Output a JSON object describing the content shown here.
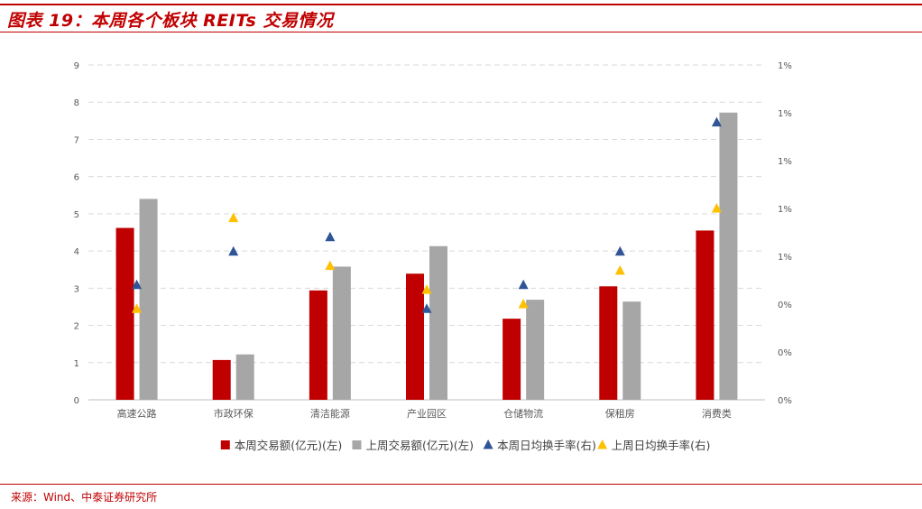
{
  "header": {
    "title": "图表 19：本周各个板块 REITs 交易情况"
  },
  "footer": {
    "source": "来源：Wind、中泰证券研究所"
  },
  "colors": {
    "accent": "#c00000",
    "bar_this_week": "#c00000",
    "bar_last_week": "#a6a6a6",
    "marker_this_week": "#2f5597",
    "marker_last_week": "#ffc000",
    "grid": "#d9d9d9",
    "axis_text": "#595959"
  },
  "chart_data": {
    "type": "bar",
    "categories": [
      "高速公路",
      "市政环保",
      "清洁能源",
      "产业园区",
      "仓储物流",
      "保租房",
      "消费类"
    ],
    "series": [
      {
        "name": "本周交易额(亿元)(左)",
        "kind": "bar",
        "axis": "left",
        "values": [
          4.62,
          1.07,
          2.94,
          3.39,
          2.18,
          3.05,
          4.55
        ]
      },
      {
        "name": "上周交易额(亿元)(左)",
        "kind": "bar",
        "axis": "left",
        "values": [
          5.4,
          1.22,
          3.58,
          4.13,
          2.69,
          2.64,
          7.72
        ]
      },
      {
        "name": "本周日均换手率(右)",
        "kind": "marker",
        "axis": "right",
        "values": [
          0.0024,
          0.0031,
          0.0034,
          0.0019,
          0.0024,
          0.0031,
          0.0058
        ]
      },
      {
        "name": "上周日均换手率(右)",
        "kind": "marker",
        "axis": "right",
        "values": [
          0.0019,
          0.0038,
          0.0028,
          0.0023,
          0.002,
          0.0027,
          0.004
        ]
      }
    ],
    "y_left": {
      "min": 0,
      "max": 9,
      "ticks": [
        "0",
        "1",
        "2",
        "3",
        "4",
        "5",
        "6",
        "7",
        "8",
        "9"
      ]
    },
    "y_right": {
      "min": 0,
      "max": 0.007,
      "ticks": [
        "0%",
        "0%",
        "0%",
        "1%",
        "1%",
        "1%",
        "1%",
        "1%"
      ]
    },
    "grid": true,
    "legend_position": "bottom",
    "title": "",
    "xlabel": "",
    "ylabel": ""
  }
}
